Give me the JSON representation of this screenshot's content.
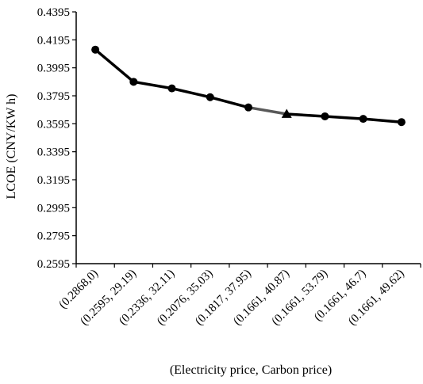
{
  "chart_data": {
    "type": "line",
    "title": "",
    "xlabel": "(Electricity price, Carbon price)",
    "ylabel": "LCOE (CNY/KW h)",
    "categories": [
      "(0.2868,0)",
      "(0.2595, 29.19)",
      "(0.2336, 32.11)",
      "(0.2076, 35.03)",
      "(0.1817, 37.95)",
      "(0.1661, 40.87)",
      "(0.1661, 53.79)",
      "(0.1661, 46.7)",
      "(0.1661, 49.62)"
    ],
    "series": [
      {
        "values": [
          0.4125,
          0.3895,
          0.3848,
          0.3785,
          0.3712,
          0.3665,
          0.3648,
          0.363,
          0.3607
        ],
        "color": "#000000",
        "markers": [
          "circle",
          "circle",
          "circle",
          "circle",
          "circle",
          "triangle",
          "circle",
          "circle",
          "circle"
        ],
        "segment_colors": [
          "#000000",
          "#000000",
          "#000000",
          "#000000",
          "#595959",
          "#000000",
          "#000000",
          "#000000"
        ]
      }
    ],
    "yticks": [
      "0.2595",
      "0.2795",
      "0.2995",
      "0.3195",
      "0.3395",
      "0.3595",
      "0.3795",
      "0.3995",
      "0.4195",
      "0.4395"
    ],
    "ylim": [
      0.2595,
      0.4395
    ],
    "grid": false,
    "legend": "none"
  }
}
